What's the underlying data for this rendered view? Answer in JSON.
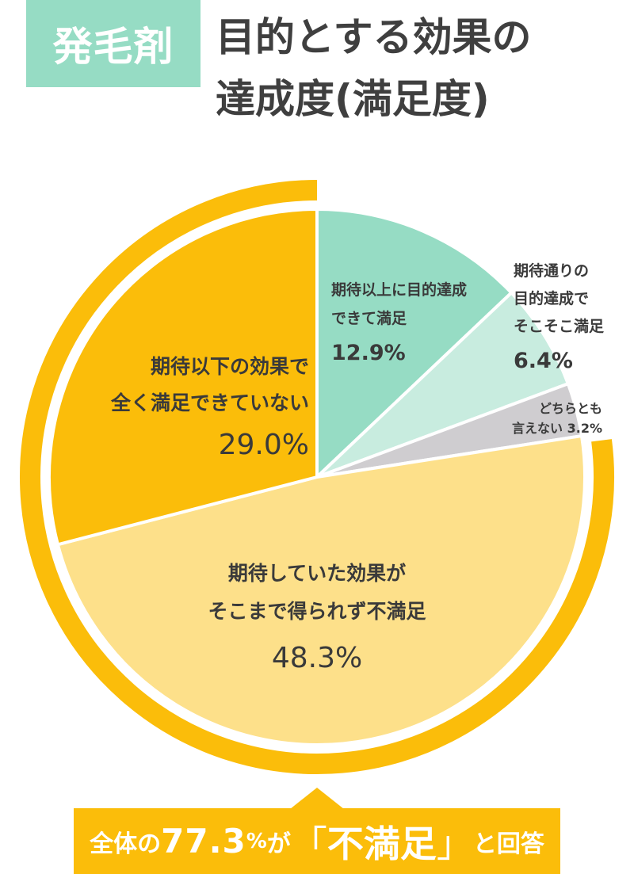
{
  "header": {
    "badge": "発毛剤",
    "title_line1": "目的とする効果の",
    "title_line2": "達成度(満足度)"
  },
  "colors": {
    "badge": "#96dcc4",
    "ring": "#fbbd0a",
    "text": "#3a3a3a",
    "callout_bg": "#fbbd0a",
    "callout_text": "#ffffff"
  },
  "chart_data": {
    "type": "pie",
    "title": "発毛剤 目的とする効果の達成度(満足度)",
    "start_angle_deg": 0,
    "direction": "clockwise",
    "categories": [
      "期待以上に目的達成できて満足",
      "期待通りの目的達成でそこそこ満足",
      "どちらとも言えない",
      "期待していた効果がそこまで得られず不満足",
      "期待以下の効果で全く満足できていない"
    ],
    "values": [
      12.9,
      6.4,
      3.2,
      48.3,
      29.0
    ],
    "colors": [
      "#96dcc4",
      "#c8ecdf",
      "#cfcdd0",
      "#fde08a",
      "#fbbd0a"
    ],
    "unit": "%",
    "highlight_ring": {
      "covers": [
        "期待していた効果がそこまで得られず不満足",
        "期待以下の効果で全く満足できていない"
      ],
      "total": 77.3,
      "color": "#fbbd0a"
    },
    "legend": "none (labels inside slices)"
  },
  "labels": {
    "s0": {
      "line1": "期待以上に目的達成",
      "line2": "できて満足",
      "value": "12.9%"
    },
    "s1": {
      "line1": "期待通りの",
      "line2": "目的達成で",
      "line3": "そこそこ満足",
      "value": "6.4%"
    },
    "s2": {
      "line1": "どちらとも",
      "line2": "言えない 3.2%"
    },
    "s3": {
      "line1": "期待していた効果が",
      "line2": "そこまで得られず不満足",
      "value": "48.3%"
    },
    "s4": {
      "line1": "期待以下の効果で",
      "line2": "全く満足できていない",
      "value": "29.0%"
    }
  },
  "callout": {
    "prefix": "全体の",
    "number": "77.3",
    "pct": "%",
    "ga": "が",
    "open_bracket": "「",
    "keyword": "不満足",
    "close_bracket": "」",
    "suffix": "と回答"
  }
}
